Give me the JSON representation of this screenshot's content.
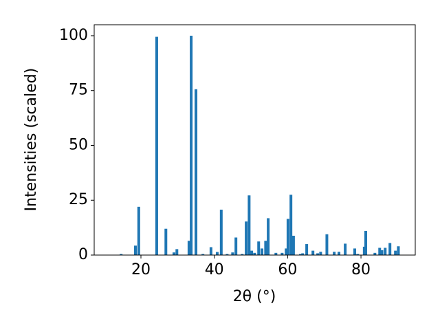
{
  "chart_data": {
    "type": "bar",
    "x_label": "2θ (°)",
    "y_label": "Intensities (scaled)",
    "color": "#1f77b4",
    "x": [
      14.6,
      18.5,
      19.4,
      24.3,
      26.8,
      29.0,
      29.8,
      33.1,
      33.7,
      35.0,
      36.9,
      39.1,
      40.8,
      41.9,
      43.5,
      45.0,
      45.9,
      47.6,
      48.7,
      49.5,
      50.2,
      51.0,
      52.1,
      53.0,
      54.0,
      54.7,
      56.8,
      58.5,
      59.6,
      60.1,
      60.9,
      61.6,
      63.5,
      64.1,
      65.2,
      66.9,
      68.2,
      69.0,
      70.7,
      72.7,
      74.0,
      75.7,
      78.3,
      79.1,
      80.9,
      81.3,
      83.8,
      85.1,
      85.7,
      86.6,
      87.9,
      89.4,
      90.2
    ],
    "values": [
      0.5,
      4.3,
      22,
      99.5,
      12,
      1.2,
      2.7,
      6.5,
      100,
      75.6,
      0.5,
      3.6,
      1.4,
      20.7,
      0.5,
      1.2,
      8,
      0.5,
      15.3,
      27.2,
      2,
      1,
      6.2,
      3,
      6.5,
      16.8,
      1,
      1,
      3,
      16.5,
      27.5,
      8.8,
      0.5,
      0.8,
      5,
      2,
      0.8,
      1.5,
      9.5,
      1.5,
      1.5,
      5.2,
      3,
      0.5,
      3.8,
      11,
      1,
      3.3,
      2.2,
      3.3,
      5.5,
      2,
      4
    ],
    "xlim": [
      7.25,
      94.8
    ],
    "ylim": [
      0,
      105
    ],
    "xticks": [
      20,
      40,
      60,
      80
    ],
    "yticks": [
      0,
      25,
      50,
      75,
      100
    ],
    "grid": false
  }
}
